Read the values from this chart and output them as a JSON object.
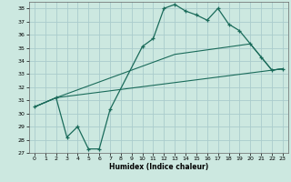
{
  "xlabel": "Humidex (Indice chaleur)",
  "bg_color": "#cce8e0",
  "grid_color": "#aacccc",
  "line_color": "#1a6b5a",
  "xlim": [
    -0.5,
    23.5
  ],
  "ylim": [
    27,
    38.5
  ],
  "xticks": [
    0,
    1,
    2,
    3,
    4,
    5,
    6,
    7,
    8,
    9,
    10,
    11,
    12,
    13,
    14,
    15,
    16,
    17,
    18,
    19,
    20,
    21,
    22,
    23
  ],
  "yticks": [
    27,
    28,
    29,
    30,
    31,
    32,
    33,
    34,
    35,
    36,
    37,
    38
  ],
  "series": [
    {
      "x": [
        0,
        2,
        3,
        4,
        5,
        6,
        7,
        10,
        11,
        12,
        13,
        14,
        15,
        16,
        17,
        18,
        19,
        20,
        21,
        22,
        23
      ],
      "y": [
        30.5,
        31.2,
        28.2,
        29.0,
        27.3,
        27.3,
        30.3,
        35.1,
        35.7,
        38.0,
        38.3,
        37.8,
        37.5,
        37.1,
        38.0,
        36.8,
        36.3,
        35.3,
        34.3,
        33.3,
        33.4
      ],
      "marker": "+"
    },
    {
      "x": [
        0,
        2,
        13,
        20,
        22,
        23
      ],
      "y": [
        30.5,
        31.2,
        34.5,
        35.3,
        33.3,
        33.4
      ],
      "marker": null
    },
    {
      "x": [
        0,
        2,
        23
      ],
      "y": [
        30.5,
        31.2,
        33.4
      ],
      "marker": null
    }
  ]
}
